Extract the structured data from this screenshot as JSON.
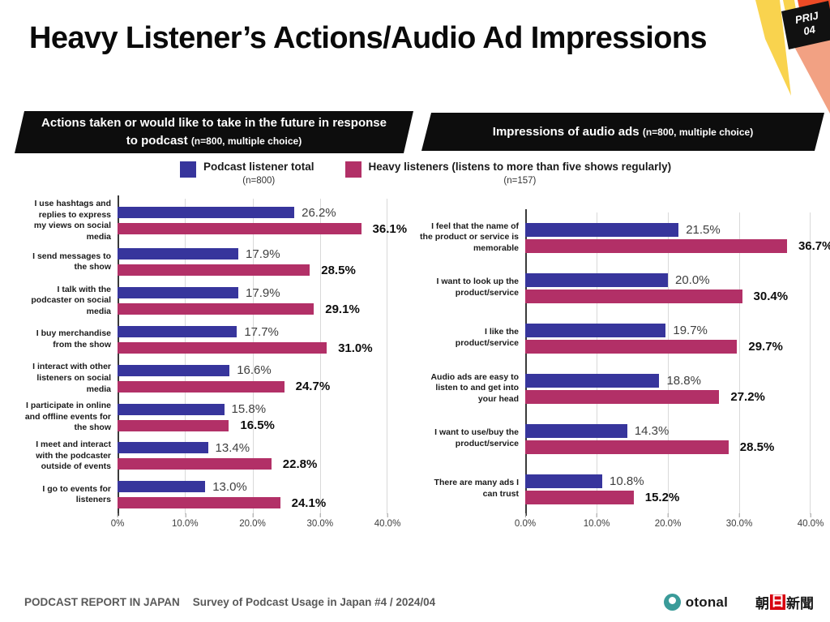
{
  "page": {
    "title": "Heavy Listener’s Actions/Audio Ad Impressions",
    "badge": {
      "line1": "PRIJ",
      "line2": "04"
    }
  },
  "legend": [
    {
      "label": "Podcast listener total",
      "n": "(n=800)",
      "color": "#37359c"
    },
    {
      "label": "Heavy listeners (listens to more than five shows regularly)",
      "n": "(n=157)",
      "color": "#b23067"
    }
  ],
  "chart_data": [
    {
      "type": "bar",
      "orientation": "horizontal",
      "title": "Actions taken or would like to take in the future in response to podcast",
      "subtitle": "(n=800, multiple choice)",
      "categories": [
        "I use hashtags and replies to express my views on social media",
        "I send messages to the show",
        "I talk with the podcaster on social media",
        "I buy merchandise from the show",
        "I interact with other listeners on social media",
        "I participate in online and offline events for the show",
        "I meet and interact with the podcaster outside of events",
        "I go to events for listeners"
      ],
      "series": [
        {
          "name": "Podcast listener total (n=800)",
          "color": "#37359c",
          "values": [
            26.2,
            17.9,
            17.9,
            17.7,
            16.6,
            15.8,
            13.4,
            13.0
          ]
        },
        {
          "name": "Heavy listeners (listens to more than five shows regularly) (n=157)",
          "color": "#b23067",
          "values": [
            36.1,
            28.5,
            29.1,
            31.0,
            24.7,
            16.5,
            22.8,
            24.1
          ]
        }
      ],
      "xlim": [
        0,
        40
      ],
      "xticks": [
        "0%",
        "10.0%",
        "20.0%",
        "30.0%",
        "40.0%"
      ],
      "grid": true,
      "legend_position": "top",
      "value_labels": "outside-end"
    },
    {
      "type": "bar",
      "orientation": "horizontal",
      "title": "Impressions of audio ads",
      "subtitle": "(n=800, multiple choice)",
      "categories": [
        "I feel that the name of the product or service is memorable",
        "I want to look up the product/service",
        "I like the product/service",
        "Audio ads are easy to listen to and get into your head",
        "I want to use/buy the product/service",
        "There are many ads I can trust"
      ],
      "series": [
        {
          "name": "Podcast listener total (n=800)",
          "color": "#37359c",
          "values": [
            21.5,
            20.0,
            19.7,
            18.8,
            14.3,
            10.8
          ]
        },
        {
          "name": "Heavy listeners (listens to more than five shows regularly) (n=157)",
          "color": "#b23067",
          "values": [
            36.7,
            30.4,
            29.7,
            27.2,
            28.5,
            15.2
          ]
        }
      ],
      "xlim": [
        0,
        40
      ],
      "xticks": [
        "0.0%",
        "10.0%",
        "20.0%",
        "30.0%",
        "40.0%"
      ],
      "grid": true,
      "legend_position": "top",
      "value_labels": "outside-end"
    }
  ],
  "footer": {
    "report": "PODCAST REPORT IN JAPAN",
    "survey": "Survey of Podcast Usage in Japan #4 / 2024/04",
    "otonal": "otonal",
    "asahi_pre": "朝",
    "asahi_hi": "日",
    "asahi_post": "新聞"
  },
  "decor_colors": {
    "yellow": "#f9d34e",
    "orange": "#ee4b26",
    "salmon": "#f2a183",
    "badge": "#111111"
  }
}
